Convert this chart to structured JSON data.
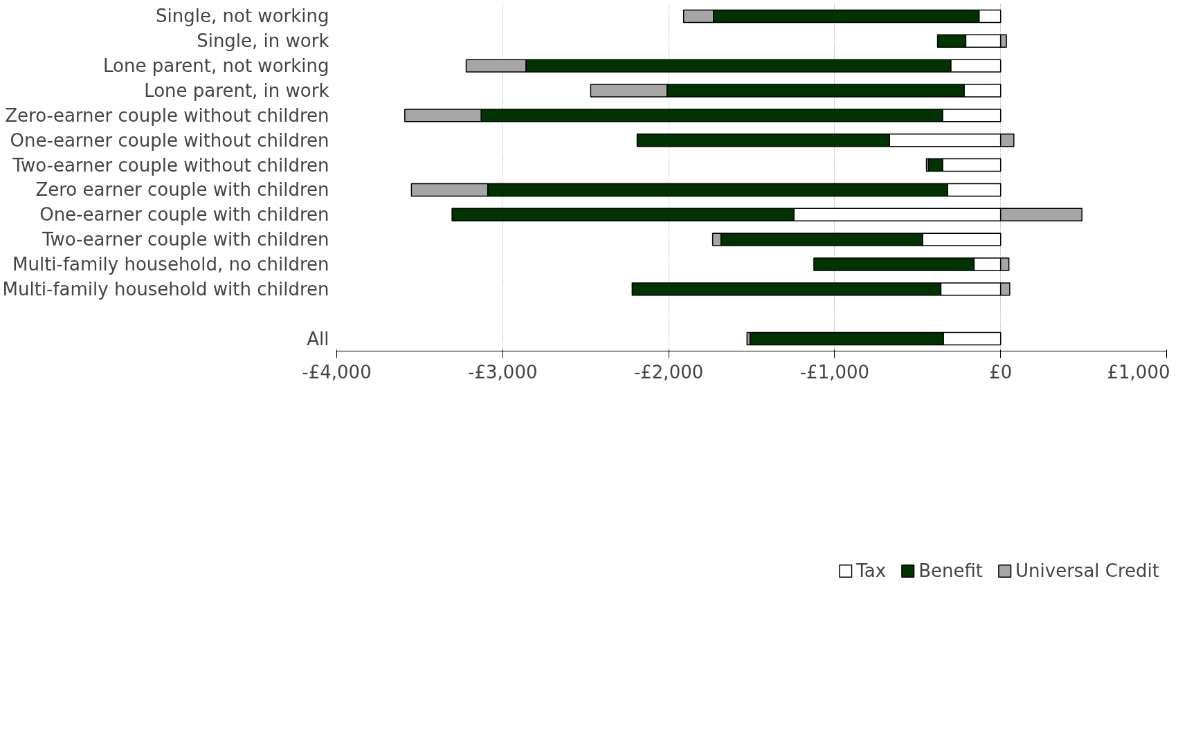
{
  "chart_data": {
    "type": "bar",
    "orientation": "horizontal",
    "stacked": true,
    "categories": [
      "Single, not working",
      "Single, in work",
      "Lone parent, not working",
      "Lone parent, in work",
      "Zero-earner couple without children",
      "One-earner couple without children",
      "Two-earner couple without children",
      "Zero earner couple with children",
      "One-earner couple with children",
      "Two-earner couple with children",
      "Multi-family household, no children",
      "Multi-family household with children",
      null,
      "All"
    ],
    "series": [
      {
        "name": "Tax",
        "color": "#ffffff",
        "values": [
          -130,
          -210,
          -300,
          -220,
          -350,
          -670,
          -350,
          -320,
          -1245,
          -470,
          -160,
          -360,
          null,
          -345
        ]
      },
      {
        "name": "Benefit",
        "color": "#003300",
        "values": [
          -1600,
          -170,
          -2560,
          -1790,
          -2780,
          -1520,
          -85,
          -2770,
          -2060,
          -1215,
          -965,
          -1860,
          null,
          -1165
        ]
      },
      {
        "name": "Universal Credit",
        "color": "#a6a6a6",
        "values": [
          -180,
          35,
          -360,
          -460,
          -460,
          80,
          -12,
          -460,
          490,
          -50,
          50,
          55,
          null,
          -18
        ]
      }
    ],
    "xlim": [
      -4000,
      1000
    ],
    "xticks": [
      {
        "value": -4000,
        "label": "-£4,000"
      },
      {
        "value": -3000,
        "label": "-£3,000"
      },
      {
        "value": -2000,
        "label": "-£2,000"
      },
      {
        "value": -1000,
        "label": "-£1,000"
      },
      {
        "value": 0,
        "label": "£0"
      },
      {
        "value": 1000,
        "label": "£1,000"
      }
    ],
    "grid": "x",
    "legend": "bottom"
  }
}
